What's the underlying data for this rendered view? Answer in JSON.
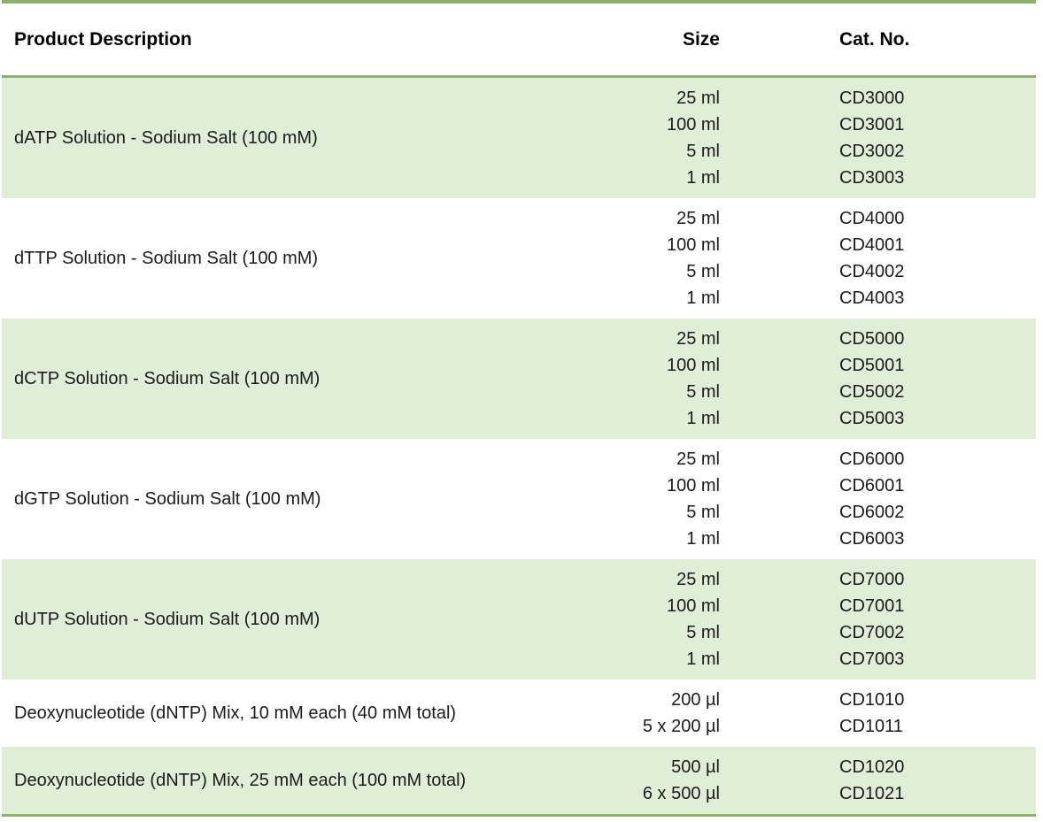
{
  "table": {
    "headers": {
      "product": "Product Description",
      "size": "Size",
      "cat": "Cat. No."
    },
    "rows": [
      {
        "product": "dATP Solution - Sodium Salt (100 mM)",
        "variants": [
          {
            "size": "25 ml",
            "cat": "CD3000"
          },
          {
            "size": "100 ml",
            "cat": "CD3001"
          },
          {
            "size": "5 ml",
            "cat": "CD3002"
          },
          {
            "size": "1 ml",
            "cat": "CD3003"
          }
        ]
      },
      {
        "product": "dTTP Solution - Sodium Salt (100 mM)",
        "variants": [
          {
            "size": "25 ml",
            "cat": "CD4000"
          },
          {
            "size": "100 ml",
            "cat": "CD4001"
          },
          {
            "size": "5 ml",
            "cat": "CD4002"
          },
          {
            "size": "1 ml",
            "cat": "CD4003"
          }
        ]
      },
      {
        "product": "dCTP Solution - Sodium Salt (100 mM)",
        "variants": [
          {
            "size": "25 ml",
            "cat": "CD5000"
          },
          {
            "size": "100 ml",
            "cat": "CD5001"
          },
          {
            "size": "5 ml",
            "cat": "CD5002"
          },
          {
            "size": "1 ml",
            "cat": "CD5003"
          }
        ]
      },
      {
        "product": "dGTP Solution - Sodium Salt (100 mM)",
        "variants": [
          {
            "size": "25 ml",
            "cat": "CD6000"
          },
          {
            "size": "100 ml",
            "cat": "CD6001"
          },
          {
            "size": "5 ml",
            "cat": "CD6002"
          },
          {
            "size": "1 ml",
            "cat": "CD6003"
          }
        ]
      },
      {
        "product": "dUTP Solution - Sodium Salt (100 mM)",
        "variants": [
          {
            "size": "25 ml",
            "cat": "CD7000"
          },
          {
            "size": "100 ml",
            "cat": "CD7001"
          },
          {
            "size": "5 ml",
            "cat": "CD7002"
          },
          {
            "size": "1 ml",
            "cat": "CD7003"
          }
        ]
      },
      {
        "product": "Deoxynucleotide (dNTP) Mix, 10 mM each (40 mM total)",
        "variants": [
          {
            "size": "200 µl",
            "cat": "CD1010"
          },
          {
            "size": "5 x 200 µl",
            "cat": "CD1011"
          }
        ]
      },
      {
        "product": "Deoxynucleotide (dNTP) Mix, 25 mM each (100 mM total)",
        "variants": [
          {
            "size": "500 µl",
            "cat": "CD1020"
          },
          {
            "size": "6 x 500 µl",
            "cat": "CD1021"
          }
        ]
      }
    ]
  },
  "colors": {
    "band_green": "#e0eed7",
    "rule_green": "#8cb170",
    "text": "#1b1b1b"
  }
}
